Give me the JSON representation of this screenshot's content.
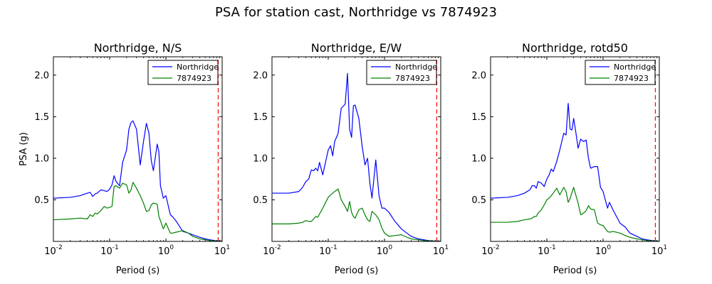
{
  "figure_title": "PSA for station cast, Northridge vs 7874923",
  "colors": {
    "series1": "#0000ff",
    "series2": "#008000",
    "marker": "#ff0000"
  },
  "chart_data": [
    {
      "type": "line",
      "title": "Northridge, N/S",
      "xlabel": "Period (s)",
      "ylabel": "PSA (g)",
      "xscale": "log",
      "xlim": [
        0.01,
        10
      ],
      "ylim": [
        0,
        2.22
      ],
      "xticks": [
        {
          "base": "10",
          "exp": "-2",
          "value": 0.01
        },
        {
          "base": "10",
          "exp": "-1",
          "value": 0.1
        },
        {
          "base": "10",
          "exp": "0",
          "value": 1
        },
        {
          "base": "10",
          "exp": "1",
          "value": 10
        }
      ],
      "yticks": [
        "0.5",
        "1.0",
        "1.5",
        "2.0"
      ],
      "legend_position": "upper right",
      "marker_line_x": 8.5,
      "series": [
        {
          "name": "Northridge",
          "color": "#0000ff",
          "x": [
            0.01,
            0.02,
            0.03,
            0.04,
            0.045,
            0.05,
            0.055,
            0.06,
            0.07,
            0.08,
            0.09,
            0.1,
            0.11,
            0.12,
            0.13,
            0.15,
            0.17,
            0.2,
            0.22,
            0.24,
            0.26,
            0.3,
            0.35,
            0.4,
            0.45,
            0.5,
            0.55,
            0.6,
            0.7,
            0.75,
            0.8,
            0.9,
            1.0,
            1.2,
            1.3,
            1.5,
            2.0,
            2.5,
            3.0,
            4.0,
            5.0,
            6.0,
            7.5,
            10.0
          ],
          "y": [
            0.52,
            0.53,
            0.55,
            0.58,
            0.59,
            0.54,
            0.57,
            0.58,
            0.62,
            0.61,
            0.6,
            0.63,
            0.68,
            0.79,
            0.72,
            0.67,
            0.95,
            1.1,
            1.35,
            1.43,
            1.45,
            1.35,
            0.92,
            1.2,
            1.42,
            1.3,
            0.97,
            0.85,
            1.17,
            1.08,
            0.67,
            0.52,
            0.55,
            0.32,
            0.3,
            0.25,
            0.12,
            0.1,
            0.08,
            0.05,
            0.03,
            0.02,
            0.01,
            0.005
          ]
        },
        {
          "name": "7874923",
          "color": "#008000",
          "x": [
            0.01,
            0.02,
            0.03,
            0.04,
            0.045,
            0.05,
            0.055,
            0.06,
            0.07,
            0.08,
            0.09,
            0.1,
            0.11,
            0.12,
            0.13,
            0.15,
            0.17,
            0.2,
            0.22,
            0.24,
            0.26,
            0.3,
            0.35,
            0.4,
            0.45,
            0.5,
            0.55,
            0.6,
            0.7,
            0.75,
            0.8,
            0.9,
            1.0,
            1.2,
            1.3,
            1.5,
            2.0,
            2.5,
            3.0,
            4.0,
            5.0,
            6.0,
            7.5,
            10.0
          ],
          "y": [
            0.26,
            0.27,
            0.28,
            0.27,
            0.32,
            0.3,
            0.34,
            0.33,
            0.37,
            0.42,
            0.4,
            0.41,
            0.42,
            0.66,
            0.67,
            0.64,
            0.7,
            0.68,
            0.58,
            0.62,
            0.71,
            0.64,
            0.55,
            0.46,
            0.36,
            0.37,
            0.44,
            0.46,
            0.45,
            0.3,
            0.25,
            0.15,
            0.22,
            0.1,
            0.1,
            0.11,
            0.13,
            0.1,
            0.06,
            0.03,
            0.02,
            0.01,
            0.005,
            0.002
          ]
        }
      ]
    },
    {
      "type": "line",
      "title": "Northridge, E/W",
      "xlabel": "Period (s)",
      "ylabel": "",
      "xscale": "log",
      "xlim": [
        0.01,
        10
      ],
      "ylim": [
        0,
        2.22
      ],
      "xticks": [
        {
          "base": "10",
          "exp": "-2",
          "value": 0.01
        },
        {
          "base": "10",
          "exp": "-1",
          "value": 0.1
        },
        {
          "base": "10",
          "exp": "0",
          "value": 1
        },
        {
          "base": "10",
          "exp": "1",
          "value": 10
        }
      ],
      "yticks": [
        "0.5",
        "1.0",
        "1.5",
        "2.0"
      ],
      "legend_position": "upper right",
      "marker_line_x": 8.5,
      "series": [
        {
          "name": "Northridge",
          "color": "#0000ff",
          "x": [
            0.01,
            0.02,
            0.03,
            0.035,
            0.04,
            0.045,
            0.05,
            0.055,
            0.06,
            0.065,
            0.07,
            0.08,
            0.09,
            0.1,
            0.11,
            0.12,
            0.13,
            0.15,
            0.17,
            0.2,
            0.22,
            0.24,
            0.26,
            0.28,
            0.3,
            0.35,
            0.4,
            0.45,
            0.5,
            0.55,
            0.6,
            0.7,
            0.8,
            0.9,
            1.0,
            1.2,
            1.5,
            2.0,
            2.5,
            3.0,
            4.0,
            5.0,
            6.0,
            7.5,
            10.0
          ],
          "y": [
            0.58,
            0.58,
            0.6,
            0.65,
            0.72,
            0.75,
            0.86,
            0.85,
            0.88,
            0.85,
            0.95,
            0.8,
            0.96,
            1.1,
            1.15,
            1.03,
            1.2,
            1.3,
            1.6,
            1.65,
            2.02,
            1.35,
            1.25,
            1.63,
            1.64,
            1.48,
            1.15,
            0.92,
            1.0,
            0.7,
            0.52,
            0.98,
            0.55,
            0.4,
            0.4,
            0.35,
            0.25,
            0.15,
            0.1,
            0.06,
            0.03,
            0.02,
            0.01,
            0.005,
            0.002
          ]
        },
        {
          "name": "7874923",
          "color": "#008000",
          "x": [
            0.01,
            0.02,
            0.03,
            0.035,
            0.04,
            0.045,
            0.05,
            0.055,
            0.06,
            0.065,
            0.07,
            0.08,
            0.09,
            0.1,
            0.11,
            0.12,
            0.13,
            0.15,
            0.17,
            0.2,
            0.22,
            0.24,
            0.26,
            0.28,
            0.3,
            0.35,
            0.4,
            0.45,
            0.5,
            0.55,
            0.6,
            0.7,
            0.8,
            0.9,
            1.0,
            1.2,
            1.5,
            2.0,
            2.5,
            3.0,
            4.0,
            5.0,
            6.0,
            7.5,
            10.0
          ],
          "y": [
            0.21,
            0.21,
            0.22,
            0.23,
            0.25,
            0.24,
            0.24,
            0.27,
            0.3,
            0.29,
            0.33,
            0.4,
            0.47,
            0.53,
            0.56,
            0.58,
            0.6,
            0.63,
            0.5,
            0.42,
            0.36,
            0.48,
            0.35,
            0.3,
            0.28,
            0.38,
            0.4,
            0.32,
            0.26,
            0.24,
            0.36,
            0.32,
            0.26,
            0.16,
            0.1,
            0.06,
            0.07,
            0.08,
            0.05,
            0.03,
            0.02,
            0.01,
            0.005,
            0.003,
            0.001
          ]
        }
      ]
    },
    {
      "type": "line",
      "title": "Northridge, rotd50",
      "xlabel": "Period (s)",
      "ylabel": "",
      "xscale": "log",
      "xlim": [
        0.01,
        10
      ],
      "ylim": [
        0,
        2.22
      ],
      "xticks": [
        {
          "base": "10",
          "exp": "-2",
          "value": 0.01
        },
        {
          "base": "10",
          "exp": "-1",
          "value": 0.1
        },
        {
          "base": "10",
          "exp": "0",
          "value": 1
        },
        {
          "base": "10",
          "exp": "1",
          "value": 10
        }
      ],
      "yticks": [
        "0.5",
        "1.0",
        "1.5",
        "2.0"
      ],
      "legend_position": "upper right",
      "marker_line_x": 8.5,
      "series": [
        {
          "name": "Northridge",
          "color": "#0000ff",
          "x": [
            0.01,
            0.02,
            0.03,
            0.04,
            0.05,
            0.055,
            0.06,
            0.065,
            0.07,
            0.08,
            0.09,
            0.1,
            0.11,
            0.12,
            0.13,
            0.15,
            0.17,
            0.2,
            0.22,
            0.24,
            0.26,
            0.28,
            0.3,
            0.33,
            0.36,
            0.4,
            0.45,
            0.5,
            0.55,
            0.6,
            0.7,
            0.8,
            0.9,
            1.0,
            1.2,
            1.3,
            1.5,
            2.0,
            2.5,
            3.0,
            4.0,
            5.0,
            6.0,
            7.5,
            10.0
          ],
          "y": [
            0.52,
            0.53,
            0.55,
            0.58,
            0.62,
            0.67,
            0.67,
            0.64,
            0.72,
            0.7,
            0.66,
            0.75,
            0.8,
            0.87,
            0.84,
            0.96,
            1.1,
            1.3,
            1.28,
            1.66,
            1.35,
            1.34,
            1.48,
            1.3,
            1.12,
            1.23,
            1.2,
            1.22,
            1.0,
            0.88,
            0.9,
            0.9,
            0.65,
            0.6,
            0.4,
            0.47,
            0.38,
            0.22,
            0.17,
            0.1,
            0.06,
            0.03,
            0.02,
            0.01,
            0.003
          ]
        },
        {
          "name": "7874923",
          "color": "#008000",
          "x": [
            0.01,
            0.02,
            0.03,
            0.04,
            0.05,
            0.055,
            0.06,
            0.065,
            0.07,
            0.08,
            0.09,
            0.1,
            0.11,
            0.12,
            0.13,
            0.15,
            0.17,
            0.2,
            0.22,
            0.24,
            0.26,
            0.28,
            0.3,
            0.33,
            0.36,
            0.4,
            0.45,
            0.5,
            0.55,
            0.6,
            0.7,
            0.8,
            0.9,
            1.0,
            1.2,
            1.3,
            1.5,
            2.0,
            2.5,
            3.0,
            4.0,
            5.0,
            6.0,
            7.5,
            10.0
          ],
          "y": [
            0.23,
            0.23,
            0.24,
            0.26,
            0.27,
            0.28,
            0.3,
            0.3,
            0.34,
            0.38,
            0.44,
            0.5,
            0.52,
            0.55,
            0.58,
            0.64,
            0.56,
            0.65,
            0.6,
            0.47,
            0.52,
            0.59,
            0.65,
            0.55,
            0.46,
            0.32,
            0.34,
            0.37,
            0.43,
            0.39,
            0.38,
            0.22,
            0.2,
            0.19,
            0.12,
            0.11,
            0.12,
            0.1,
            0.07,
            0.05,
            0.03,
            0.02,
            0.01,
            0.005,
            0.002
          ]
        }
      ]
    }
  ]
}
